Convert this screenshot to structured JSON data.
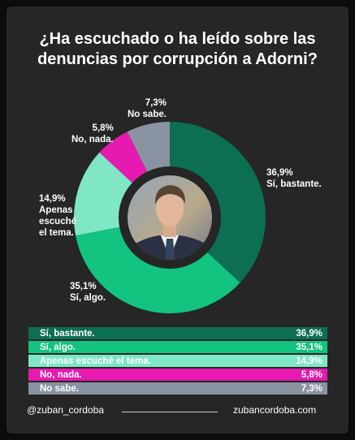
{
  "title": {
    "line1": "¿Ha escuchado o ha leído sobre las",
    "line2": "denuncias por corrupción a Adorni?"
  },
  "chart_data": {
    "type": "pie",
    "title": "¿Ha escuchado o ha leído sobre las denuncias por corrupción a Adorni?",
    "slices": [
      {
        "label": "Sí, bastante.",
        "value": 36.9,
        "display": "36,9%",
        "color": "#0c6e53"
      },
      {
        "label": "Sí, algo.",
        "value": 35.1,
        "display": "35,1%",
        "color": "#12c47f"
      },
      {
        "label": "Apenas escuché el tema.",
        "value": 14.9,
        "display": "14,9%",
        "color": "#7fe6c6"
      },
      {
        "label": "No, nada.",
        "value": 5.8,
        "display": "5,8%",
        "color": "#e619b0"
      },
      {
        "label": "No sabe.",
        "value": 7.3,
        "display": "7,3%",
        "color": "#8a93a1"
      }
    ]
  },
  "donut_labels": {
    "bastante": {
      "pct": "36,9%",
      "line1": "Sí, bastante."
    },
    "algo": {
      "pct": "35,1%",
      "line1": "Sí, algo."
    },
    "apenas": {
      "pct": "14,9%",
      "line1": "Apenas",
      "line2": "escuché",
      "line3": "el tema."
    },
    "nada": {
      "pct": "5,8%",
      "line1": "No, nada."
    },
    "nosabe": {
      "pct": "7,3%",
      "line1": "No sabe."
    }
  },
  "table": [
    {
      "label": "Sí, bastante.",
      "value": "36,9%",
      "color": "#0c6e53"
    },
    {
      "label": "Sí, algo.",
      "value": "35,1%",
      "color": "#12c47f"
    },
    {
      "label": "Apenas escuché el tema.",
      "value": "14,9%",
      "color": "#7fe6c6"
    },
    {
      "label": "No, nada.",
      "value": "5,8%",
      "color": "#e619b0"
    },
    {
      "label": "No sabe.",
      "value": "7,3%",
      "color": "#8a93a1"
    }
  ],
  "footer": {
    "handle": "@zuban_cordoba",
    "website": "zubancordoba.com"
  }
}
